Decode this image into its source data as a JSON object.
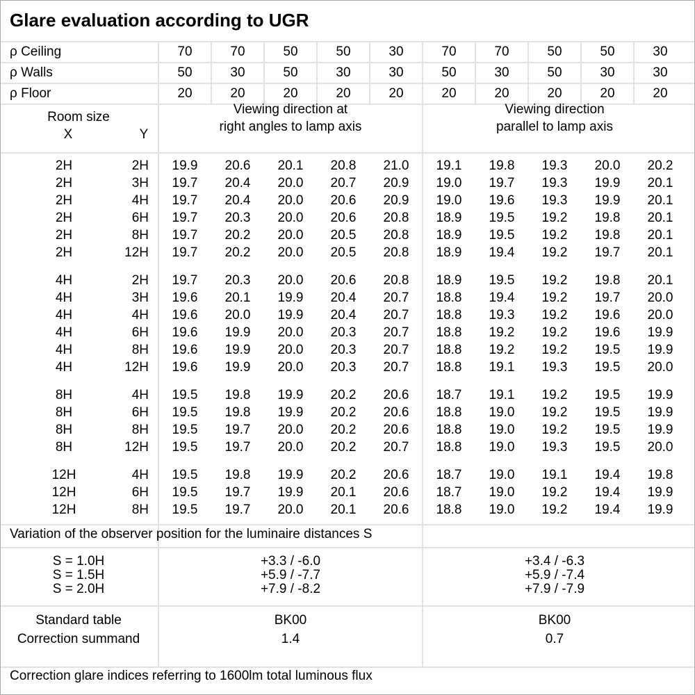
{
  "title": "Glare evaluation according to UGR",
  "reflectances": [
    {
      "label": "ρ Ceiling",
      "values": [
        "70",
        "70",
        "50",
        "50",
        "30",
        "70",
        "70",
        "50",
        "50",
        "30"
      ]
    },
    {
      "label": "ρ Walls",
      "values": [
        "50",
        "30",
        "50",
        "30",
        "30",
        "50",
        "30",
        "50",
        "30",
        "30"
      ]
    },
    {
      "label": "ρ Floor",
      "values": [
        "20",
        "20",
        "20",
        "20",
        "20",
        "20",
        "20",
        "20",
        "20",
        "20"
      ]
    }
  ],
  "header": {
    "room_size": "Room size",
    "x": "X",
    "y": "Y",
    "dir1": [
      "Viewing direction at",
      "right angles to lamp axis"
    ],
    "dir2": [
      "Viewing direction",
      "parallel to lamp axis"
    ]
  },
  "groups": [
    [
      [
        "2H",
        "2H",
        [
          "19.9",
          "20.6",
          "20.1",
          "20.8",
          "21.0",
          "19.1",
          "19.8",
          "19.3",
          "20.0",
          "20.2"
        ]
      ],
      [
        "2H",
        "3H",
        [
          "19.7",
          "20.4",
          "20.0",
          "20.7",
          "20.9",
          "19.0",
          "19.7",
          "19.3",
          "19.9",
          "20.1"
        ]
      ],
      [
        "2H",
        "4H",
        [
          "19.7",
          "20.4",
          "20.0",
          "20.6",
          "20.9",
          "19.0",
          "19.6",
          "19.3",
          "19.9",
          "20.1"
        ]
      ],
      [
        "2H",
        "6H",
        [
          "19.7",
          "20.3",
          "20.0",
          "20.6",
          "20.8",
          "18.9",
          "19.5",
          "19.2",
          "19.8",
          "20.1"
        ]
      ],
      [
        "2H",
        "8H",
        [
          "19.7",
          "20.2",
          "20.0",
          "20.5",
          "20.8",
          "18.9",
          "19.5",
          "19.2",
          "19.8",
          "20.1"
        ]
      ],
      [
        "2H",
        "12H",
        [
          "19.7",
          "20.2",
          "20.0",
          "20.5",
          "20.8",
          "18.9",
          "19.4",
          "19.2",
          "19.7",
          "20.1"
        ]
      ]
    ],
    [
      [
        "4H",
        "2H",
        [
          "19.7",
          "20.3",
          "20.0",
          "20.6",
          "20.8",
          "18.9",
          "19.5",
          "19.2",
          "19.8",
          "20.1"
        ]
      ],
      [
        "4H",
        "3H",
        [
          "19.6",
          "20.1",
          "19.9",
          "20.4",
          "20.7",
          "18.8",
          "19.4",
          "19.2",
          "19.7",
          "20.0"
        ]
      ],
      [
        "4H",
        "4H",
        [
          "19.6",
          "20.0",
          "19.9",
          "20.4",
          "20.7",
          "18.8",
          "19.3",
          "19.2",
          "19.6",
          "20.0"
        ]
      ],
      [
        "4H",
        "6H",
        [
          "19.6",
          "19.9",
          "20.0",
          "20.3",
          "20.7",
          "18.8",
          "19.2",
          "19.2",
          "19.6",
          "19.9"
        ]
      ],
      [
        "4H",
        "8H",
        [
          "19.6",
          "19.9",
          "20.0",
          "20.3",
          "20.7",
          "18.8",
          "19.2",
          "19.2",
          "19.5",
          "19.9"
        ]
      ],
      [
        "4H",
        "12H",
        [
          "19.6",
          "19.9",
          "20.0",
          "20.3",
          "20.7",
          "18.8",
          "19.1",
          "19.3",
          "19.5",
          "20.0"
        ]
      ]
    ],
    [
      [
        "8H",
        "4H",
        [
          "19.5",
          "19.8",
          "19.9",
          "20.2",
          "20.6",
          "18.7",
          "19.1",
          "19.2",
          "19.5",
          "19.9"
        ]
      ],
      [
        "8H",
        "6H",
        [
          "19.5",
          "19.8",
          "19.9",
          "20.2",
          "20.6",
          "18.8",
          "19.0",
          "19.2",
          "19.5",
          "19.9"
        ]
      ],
      [
        "8H",
        "8H",
        [
          "19.5",
          "19.7",
          "20.0",
          "20.2",
          "20.6",
          "18.8",
          "19.0",
          "19.2",
          "19.5",
          "19.9"
        ]
      ],
      [
        "8H",
        "12H",
        [
          "19.5",
          "19.7",
          "20.0",
          "20.2",
          "20.7",
          "18.8",
          "19.0",
          "19.3",
          "19.5",
          "20.0"
        ]
      ]
    ],
    [
      [
        "12H",
        "4H",
        [
          "19.5",
          "19.8",
          "19.9",
          "20.2",
          "20.6",
          "18.7",
          "19.0",
          "19.1",
          "19.4",
          "19.8"
        ]
      ],
      [
        "12H",
        "6H",
        [
          "19.5",
          "19.7",
          "19.9",
          "20.1",
          "20.6",
          "18.7",
          "19.0",
          "19.2",
          "19.4",
          "19.9"
        ]
      ],
      [
        "12H",
        "8H",
        [
          "19.5",
          "19.7",
          "20.0",
          "20.1",
          "20.6",
          "18.8",
          "19.0",
          "19.2",
          "19.4",
          "19.9"
        ]
      ]
    ]
  ],
  "variation": {
    "title": "Variation of the observer position for the luminaire distances S",
    "rows": [
      [
        "S = 1.0H",
        "+3.3 / -6.0",
        "+3.4 / -6.3"
      ],
      [
        "S = 1.5H",
        "+5.9 / -7.7",
        "+5.9 / -7.4"
      ],
      [
        "S = 2.0H",
        "+7.9 / -8.2",
        "+7.9 / -7.9"
      ]
    ]
  },
  "standard": {
    "label1": "Standard table",
    "label2": "Correction summand",
    "table1": "BK00",
    "table2": "BK00",
    "corr1": "1.4",
    "corr2": "0.7"
  },
  "footer": "Correction glare indices referring to 1600lm total luminous flux"
}
